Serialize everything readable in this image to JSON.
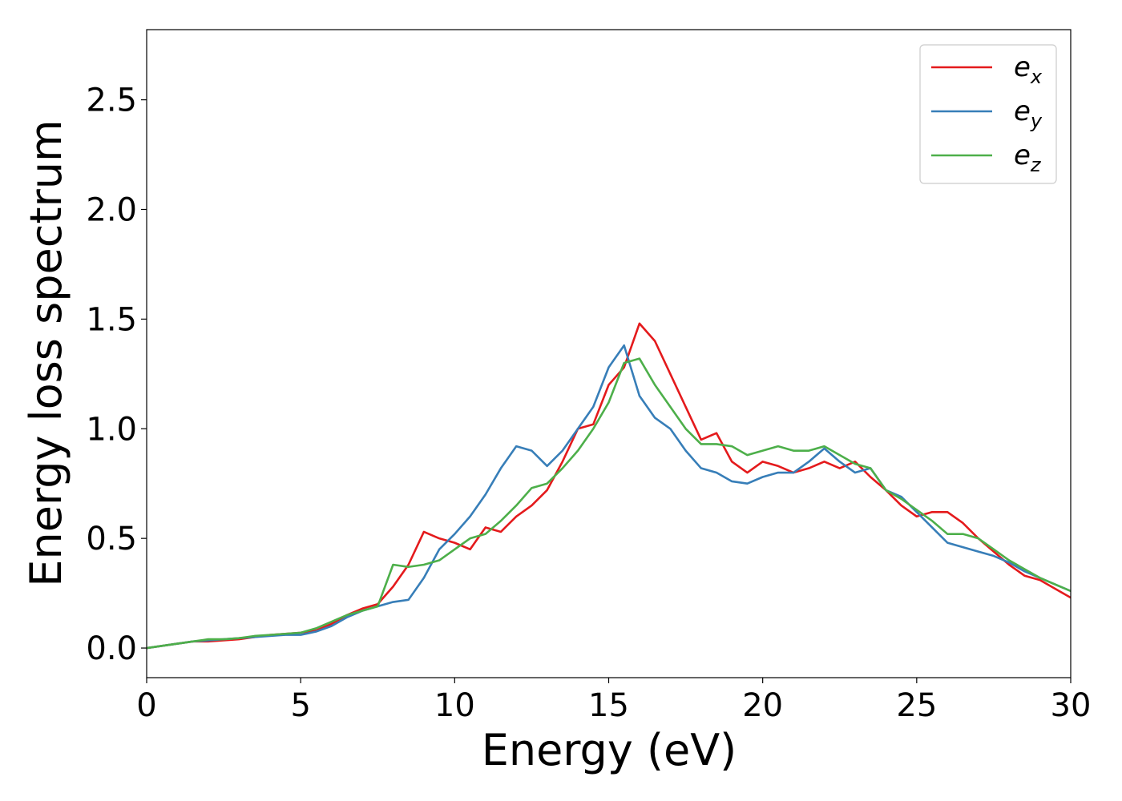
{
  "chart_data": {
    "type": "line",
    "xlabel": "Energy (eV)",
    "ylabel": "Energy loss spectrum",
    "x": [
      0,
      0.5,
      1,
      1.5,
      2,
      2.5,
      3,
      3.5,
      4,
      4.5,
      5,
      5.5,
      6,
      6.5,
      7,
      7.5,
      8,
      8.5,
      9,
      9.5,
      10,
      10.5,
      11,
      11.5,
      12,
      12.5,
      13,
      13.5,
      14,
      14.5,
      15,
      15.5,
      16,
      16.5,
      17,
      17.5,
      18,
      18.5,
      19,
      19.5,
      20,
      20.5,
      21,
      21.5,
      22,
      22.5,
      23,
      23.5,
      24,
      24.5,
      25,
      25.5,
      26,
      26.5,
      27,
      27.5,
      28,
      28.5,
      29,
      29.5,
      30
    ],
    "series": [
      {
        "name": "e_x",
        "color": "#e41a1c",
        "values": [
          0,
          0.01,
          0.02,
          0.03,
          0.03,
          0.035,
          0.04,
          0.05,
          0.06,
          0.065,
          0.07,
          0.08,
          0.11,
          0.15,
          0.18,
          0.2,
          0.28,
          0.38,
          0.53,
          0.5,
          0.48,
          0.45,
          0.55,
          0.53,
          0.6,
          0.65,
          0.72,
          0.85,
          1.0,
          1.02,
          1.2,
          1.28,
          1.48,
          1.4,
          1.25,
          1.1,
          0.95,
          0.98,
          0.85,
          0.8,
          0.85,
          0.83,
          0.8,
          0.82,
          0.85,
          0.82,
          0.85,
          0.78,
          0.72,
          0.65,
          0.6,
          0.62,
          0.62,
          0.57,
          0.5,
          0.44,
          0.38,
          0.33,
          0.31,
          0.27,
          0.23
        ]
      },
      {
        "name": "e_y",
        "color": "#377eb8",
        "values": [
          0,
          0.01,
          0.02,
          0.03,
          0.035,
          0.04,
          0.045,
          0.05,
          0.055,
          0.06,
          0.06,
          0.075,
          0.1,
          0.14,
          0.17,
          0.19,
          0.21,
          0.22,
          0.32,
          0.45,
          0.52,
          0.6,
          0.7,
          0.82,
          0.92,
          0.9,
          0.83,
          0.9,
          1.0,
          1.1,
          1.28,
          1.38,
          1.15,
          1.05,
          1.0,
          0.9,
          0.82,
          0.8,
          0.76,
          0.75,
          0.78,
          0.8,
          0.8,
          0.85,
          0.91,
          0.85,
          0.8,
          0.82,
          0.72,
          0.69,
          0.62,
          0.55,
          0.48,
          0.46,
          0.44,
          0.42,
          0.39,
          0.35,
          0.32,
          0.29,
          0.26
        ]
      },
      {
        "name": "e_z",
        "color": "#4daf4a",
        "values": [
          0,
          0.01,
          0.02,
          0.03,
          0.04,
          0.04,
          0.045,
          0.055,
          0.06,
          0.065,
          0.07,
          0.09,
          0.12,
          0.15,
          0.17,
          0.19,
          0.38,
          0.37,
          0.38,
          0.4,
          0.45,
          0.5,
          0.52,
          0.58,
          0.65,
          0.73,
          0.75,
          0.82,
          0.9,
          1.0,
          1.12,
          1.3,
          1.32,
          1.2,
          1.1,
          1.0,
          0.93,
          0.93,
          0.92,
          0.88,
          0.9,
          0.92,
          0.9,
          0.9,
          0.92,
          0.88,
          0.84,
          0.82,
          0.72,
          0.68,
          0.63,
          0.58,
          0.52,
          0.52,
          0.5,
          0.45,
          0.4,
          0.36,
          0.32,
          0.29,
          0.26
        ]
      }
    ],
    "xlim": [
      0,
      30
    ],
    "ylim": [
      -0.135,
      2.82
    ],
    "xticks": [
      0,
      5,
      10,
      15,
      20,
      25,
      30
    ],
    "yticks": [
      {
        "value": 0,
        "label": "0.0"
      },
      0.5,
      {
        "value": 1,
        "label": "1.0"
      },
      1.5,
      {
        "value": 2,
        "label": "2.0"
      },
      2.5
    ],
    "legend": "upper right"
  }
}
